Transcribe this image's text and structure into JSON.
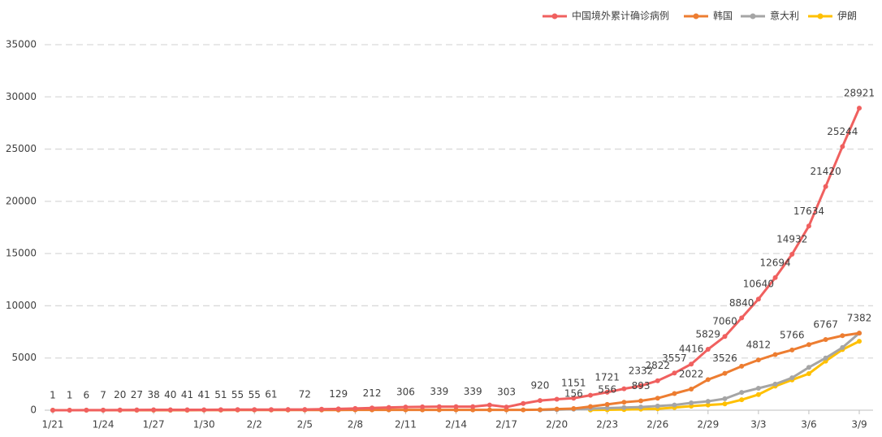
{
  "chart_data": {
    "type": "line",
    "categories": [
      "1/21",
      null,
      null,
      "1/24",
      null,
      null,
      "1/27",
      null,
      null,
      "1/30",
      null,
      null,
      "2/2",
      null,
      null,
      "2/5",
      null,
      null,
      "2/8",
      null,
      null,
      "2/11",
      null,
      null,
      "2/14",
      null,
      null,
      "2/17",
      null,
      null,
      "2/20",
      null,
      null,
      "2/23",
      null,
      null,
      "2/26",
      null,
      null,
      "2/29",
      null,
      null,
      "3/3",
      null,
      null,
      "3/6",
      null,
      null,
      "3/9"
    ],
    "series": [
      {
        "name": "中国境外累计确诊病例",
        "color": "#f0605f",
        "values": [
          1,
          1,
          6,
          7,
          20,
          27,
          38,
          40,
          41,
          41,
          51,
          55,
          55,
          61,
          66,
          72,
          100,
          129,
          170,
          212,
          260,
          306,
          320,
          339,
          339,
          339,
          500,
          303,
          640,
          920,
          1050,
          1151,
          1430,
          1721,
          2050,
          2332,
          2822,
          3557,
          4416,
          5829,
          7060,
          8840,
          10640,
          12694,
          14932,
          17634,
          21420,
          25244,
          28921
        ],
        "value_labels": [
          "1",
          "1",
          "6",
          "7",
          "20",
          "27",
          "38",
          "40",
          "41",
          "41",
          "51",
          "55",
          "55",
          "61",
          null,
          "72",
          null,
          "129",
          null,
          "212",
          null,
          "306",
          null,
          "339",
          null,
          "339",
          null,
          "303",
          null,
          "920",
          null,
          "1151",
          null,
          "1721",
          null,
          "2332",
          "2822",
          "3557",
          "4416",
          "5829",
          "7060",
          "8840",
          "10640",
          "12694",
          "14932",
          "17634",
          "21420",
          "25244",
          "28921"
        ]
      },
      {
        "name": "韩国",
        "color": "#ed7d31",
        "values": [
          1,
          1,
          1,
          2,
          2,
          3,
          4,
          4,
          4,
          11,
          12,
          15,
          15,
          16,
          19,
          23,
          24,
          24,
          27,
          27,
          28,
          28,
          28,
          28,
          28,
          29,
          30,
          31,
          31,
          51,
          104,
          156,
          346,
          556,
          763,
          893,
          1146,
          1595,
          2022,
          2931,
          3526,
          4212,
          4812,
          5328,
          5766,
          6284,
          6767,
          7134,
          7382
        ],
        "value_labels": [
          null,
          null,
          null,
          null,
          null,
          null,
          null,
          null,
          null,
          null,
          null,
          null,
          null,
          null,
          null,
          null,
          null,
          null,
          null,
          null,
          null,
          null,
          null,
          null,
          null,
          null,
          null,
          null,
          null,
          null,
          null,
          "156",
          null,
          "556",
          null,
          "893",
          null,
          null,
          "2022",
          null,
          "3526",
          null,
          "4812",
          null,
          "5766",
          null,
          "6767",
          null,
          "7382"
        ]
      },
      {
        "name": "意大利",
        "color": "#a5a5a5",
        "values": [
          null,
          null,
          null,
          null,
          null,
          null,
          null,
          null,
          null,
          null,
          null,
          null,
          null,
          null,
          null,
          null,
          null,
          null,
          null,
          null,
          null,
          null,
          null,
          null,
          null,
          null,
          null,
          null,
          null,
          20,
          50,
          100,
          150,
          200,
          250,
          300,
          400,
          500,
          700,
          850,
          1100,
          1700,
          2100,
          2500,
          3100,
          4100,
          5000,
          6000,
          7382
        ]
      },
      {
        "name": "伊朗",
        "color": "#ffc000",
        "values": [
          null,
          null,
          null,
          null,
          null,
          null,
          null,
          null,
          null,
          null,
          null,
          null,
          null,
          null,
          null,
          null,
          null,
          null,
          null,
          null,
          null,
          null,
          null,
          null,
          null,
          null,
          null,
          null,
          null,
          null,
          null,
          null,
          20,
          40,
          60,
          100,
          140,
          250,
          390,
          500,
          600,
          1000,
          1500,
          2300,
          2900,
          3500,
          4700,
          5800,
          6600
        ]
      }
    ],
    "ylim": [
      0,
      35000
    ],
    "yticks": [
      0,
      5000,
      10000,
      15000,
      20000,
      25000,
      30000,
      35000
    ],
    "grid": true,
    "legend": "top-right"
  }
}
